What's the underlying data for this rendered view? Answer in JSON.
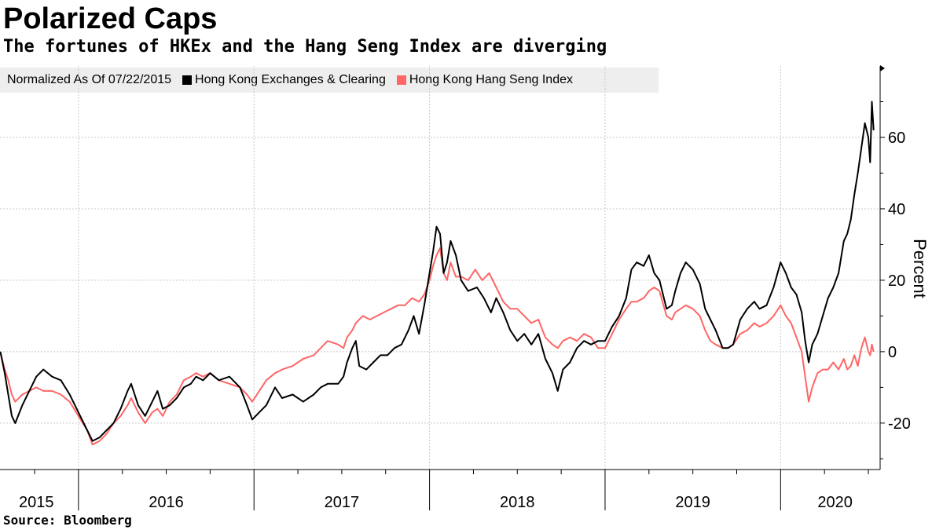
{
  "chart_data": {
    "type": "line",
    "title": "Polarized Caps",
    "subtitle": "The fortunes of HKEx and the Hang Seng Index are diverging",
    "legend_note": "Normalized As Of 07/22/2015",
    "ylabel": "Percent",
    "ylim": [
      -33,
      80
    ],
    "yticks": [
      -20,
      0,
      20,
      40,
      60
    ],
    "year_labels": [
      {
        "label": "2015",
        "x": 2015.76
      },
      {
        "label": "2016",
        "x": 2016.5
      },
      {
        "label": "2017",
        "x": 2017.5
      },
      {
        "label": "2018",
        "x": 2018.5
      },
      {
        "label": "2019",
        "x": 2019.5
      },
      {
        "label": "2020",
        "x": 2020.31
      }
    ],
    "year_boundaries": [
      2016.0,
      2017.0,
      2018.0,
      2019.0,
      2020.0
    ],
    "xlim": [
      2015.553,
      2020.567
    ],
    "series": [
      {
        "name": "Hong Kong Exchanges & Clearing",
        "color": "#000000",
        "points": [
          [
            2015.555,
            0
          ],
          [
            2015.58,
            -6
          ],
          [
            2015.6,
            -12
          ],
          [
            2015.62,
            -18
          ],
          [
            2015.64,
            -20
          ],
          [
            2015.68,
            -15
          ],
          [
            2015.72,
            -11
          ],
          [
            2015.76,
            -7
          ],
          [
            2015.8,
            -5
          ],
          [
            2015.85,
            -7
          ],
          [
            2015.9,
            -8
          ],
          [
            2015.95,
            -12
          ],
          [
            2016.0,
            -17
          ],
          [
            2016.05,
            -22
          ],
          [
            2016.08,
            -25
          ],
          [
            2016.12,
            -24
          ],
          [
            2016.16,
            -22
          ],
          [
            2016.2,
            -20
          ],
          [
            2016.24,
            -16
          ],
          [
            2016.28,
            -11
          ],
          [
            2016.3,
            -9
          ],
          [
            2016.34,
            -15
          ],
          [
            2016.38,
            -18
          ],
          [
            2016.42,
            -14
          ],
          [
            2016.45,
            -11
          ],
          [
            2016.48,
            -16
          ],
          [
            2016.52,
            -15
          ],
          [
            2016.56,
            -13
          ],
          [
            2016.6,
            -10
          ],
          [
            2016.64,
            -9
          ],
          [
            2016.67,
            -7
          ],
          [
            2016.71,
            -8
          ],
          [
            2016.75,
            -6
          ],
          [
            2016.8,
            -8
          ],
          [
            2016.86,
            -7
          ],
          [
            2016.92,
            -10
          ],
          [
            2016.96,
            -15
          ],
          [
            2016.99,
            -19
          ],
          [
            2017.03,
            -17
          ],
          [
            2017.07,
            -15
          ],
          [
            2017.12,
            -10
          ],
          [
            2017.16,
            -13
          ],
          [
            2017.22,
            -12
          ],
          [
            2017.28,
            -14
          ],
          [
            2017.34,
            -12
          ],
          [
            2017.38,
            -10
          ],
          [
            2017.42,
            -9
          ],
          [
            2017.48,
            -9
          ],
          [
            2017.51,
            -7
          ],
          [
            2017.53,
            -3
          ],
          [
            2017.56,
            1
          ],
          [
            2017.58,
            3
          ],
          [
            2017.6,
            -4
          ],
          [
            2017.64,
            -5
          ],
          [
            2017.68,
            -3
          ],
          [
            2017.72,
            -1
          ],
          [
            2017.76,
            -1
          ],
          [
            2017.8,
            1
          ],
          [
            2017.84,
            2
          ],
          [
            2017.88,
            6
          ],
          [
            2017.91,
            10
          ],
          [
            2017.94,
            5
          ],
          [
            2017.97,
            13
          ],
          [
            2018.0,
            22
          ],
          [
            2018.02,
            28
          ],
          [
            2018.04,
            35
          ],
          [
            2018.06,
            33
          ],
          [
            2018.08,
            22
          ],
          [
            2018.1,
            25
          ],
          [
            2018.12,
            31
          ],
          [
            2018.15,
            27
          ],
          [
            2018.18,
            20
          ],
          [
            2018.22,
            17
          ],
          [
            2018.27,
            18
          ],
          [
            2018.31,
            15
          ],
          [
            2018.35,
            11
          ],
          [
            2018.38,
            15
          ],
          [
            2018.42,
            11
          ],
          [
            2018.46,
            6
          ],
          [
            2018.5,
            3
          ],
          [
            2018.54,
            5
          ],
          [
            2018.58,
            2
          ],
          [
            2018.62,
            5
          ],
          [
            2018.66,
            -2
          ],
          [
            2018.7,
            -6
          ],
          [
            2018.73,
            -11
          ],
          [
            2018.76,
            -5
          ],
          [
            2018.8,
            -3
          ],
          [
            2018.84,
            1
          ],
          [
            2018.88,
            3
          ],
          [
            2018.92,
            2
          ],
          [
            2018.96,
            3
          ],
          [
            2019.0,
            3
          ],
          [
            2019.04,
            7
          ],
          [
            2019.08,
            10
          ],
          [
            2019.12,
            15
          ],
          [
            2019.15,
            23
          ],
          [
            2019.18,
            25
          ],
          [
            2019.22,
            24
          ],
          [
            2019.25,
            27
          ],
          [
            2019.28,
            22
          ],
          [
            2019.31,
            20
          ],
          [
            2019.35,
            12
          ],
          [
            2019.38,
            13
          ],
          [
            2019.4,
            17
          ],
          [
            2019.43,
            22
          ],
          [
            2019.46,
            25
          ],
          [
            2019.5,
            23
          ],
          [
            2019.54,
            19
          ],
          [
            2019.57,
            12
          ],
          [
            2019.6,
            9
          ],
          [
            2019.63,
            6
          ],
          [
            2019.67,
            1
          ],
          [
            2019.7,
            1
          ],
          [
            2019.73,
            2
          ],
          [
            2019.77,
            9
          ],
          [
            2019.81,
            12
          ],
          [
            2019.85,
            14
          ],
          [
            2019.88,
            12
          ],
          [
            2019.92,
            13
          ],
          [
            2019.96,
            18
          ],
          [
            2020.0,
            25
          ],
          [
            2020.03,
            22
          ],
          [
            2020.06,
            18
          ],
          [
            2020.09,
            16
          ],
          [
            2020.12,
            11
          ],
          [
            2020.14,
            3
          ],
          [
            2020.16,
            -3
          ],
          [
            2020.18,
            2
          ],
          [
            2020.21,
            5
          ],
          [
            2020.24,
            10
          ],
          [
            2020.27,
            15
          ],
          [
            2020.3,
            18
          ],
          [
            2020.33,
            22
          ],
          [
            2020.36,
            31
          ],
          [
            2020.38,
            33
          ],
          [
            2020.4,
            37
          ],
          [
            2020.42,
            44
          ],
          [
            2020.44,
            50
          ],
          [
            2020.46,
            57
          ],
          [
            2020.48,
            64
          ],
          [
            2020.5,
            60
          ],
          [
            2020.51,
            53
          ],
          [
            2020.52,
            70
          ],
          [
            2020.53,
            62
          ]
        ]
      },
      {
        "name": "Hong Kong Hang Seng Index",
        "color": "#ff6666",
        "points": [
          [
            2015.555,
            0
          ],
          [
            2015.58,
            -5
          ],
          [
            2015.6,
            -8
          ],
          [
            2015.62,
            -12
          ],
          [
            2015.64,
            -14
          ],
          [
            2015.68,
            -12
          ],
          [
            2015.72,
            -11
          ],
          [
            2015.76,
            -10
          ],
          [
            2015.8,
            -11
          ],
          [
            2015.85,
            -11
          ],
          [
            2015.9,
            -12
          ],
          [
            2015.95,
            -14
          ],
          [
            2016.0,
            -18
          ],
          [
            2016.05,
            -22
          ],
          [
            2016.08,
            -26
          ],
          [
            2016.12,
            -25
          ],
          [
            2016.16,
            -23
          ],
          [
            2016.2,
            -20
          ],
          [
            2016.24,
            -18
          ],
          [
            2016.28,
            -15
          ],
          [
            2016.3,
            -13
          ],
          [
            2016.34,
            -17
          ],
          [
            2016.38,
            -20
          ],
          [
            2016.42,
            -17
          ],
          [
            2016.45,
            -16
          ],
          [
            2016.48,
            -18
          ],
          [
            2016.52,
            -14
          ],
          [
            2016.56,
            -12
          ],
          [
            2016.6,
            -8
          ],
          [
            2016.64,
            -7
          ],
          [
            2016.67,
            -6
          ],
          [
            2016.71,
            -7
          ],
          [
            2016.75,
            -6
          ],
          [
            2016.8,
            -8
          ],
          [
            2016.86,
            -9
          ],
          [
            2016.92,
            -10
          ],
          [
            2016.96,
            -12
          ],
          [
            2016.99,
            -14
          ],
          [
            2017.03,
            -11
          ],
          [
            2017.07,
            -8
          ],
          [
            2017.12,
            -6
          ],
          [
            2017.16,
            -5
          ],
          [
            2017.22,
            -4
          ],
          [
            2017.28,
            -2
          ],
          [
            2017.34,
            -1
          ],
          [
            2017.38,
            1
          ],
          [
            2017.42,
            3
          ],
          [
            2017.48,
            2
          ],
          [
            2017.51,
            1
          ],
          [
            2017.53,
            4
          ],
          [
            2017.56,
            6
          ],
          [
            2017.58,
            8
          ],
          [
            2017.62,
            10
          ],
          [
            2017.66,
            9
          ],
          [
            2017.7,
            10
          ],
          [
            2017.74,
            11
          ],
          [
            2017.78,
            12
          ],
          [
            2017.82,
            13
          ],
          [
            2017.86,
            13
          ],
          [
            2017.9,
            15
          ],
          [
            2017.94,
            14
          ],
          [
            2017.97,
            16
          ],
          [
            2018.0,
            20
          ],
          [
            2018.02,
            24
          ],
          [
            2018.04,
            27
          ],
          [
            2018.06,
            29
          ],
          [
            2018.08,
            22
          ],
          [
            2018.1,
            20
          ],
          [
            2018.12,
            25
          ],
          [
            2018.15,
            21
          ],
          [
            2018.18,
            21
          ],
          [
            2018.22,
            20
          ],
          [
            2018.26,
            23
          ],
          [
            2018.3,
            20
          ],
          [
            2018.34,
            22
          ],
          [
            2018.38,
            18
          ],
          [
            2018.42,
            14
          ],
          [
            2018.46,
            12
          ],
          [
            2018.5,
            12
          ],
          [
            2018.54,
            10
          ],
          [
            2018.58,
            8
          ],
          [
            2018.62,
            9
          ],
          [
            2018.66,
            4
          ],
          [
            2018.7,
            2
          ],
          [
            2018.73,
            1
          ],
          [
            2018.76,
            3
          ],
          [
            2018.8,
            4
          ],
          [
            2018.84,
            3
          ],
          [
            2018.88,
            5
          ],
          [
            2018.92,
            4
          ],
          [
            2018.96,
            1
          ],
          [
            2019.0,
            1
          ],
          [
            2019.04,
            5
          ],
          [
            2019.08,
            9
          ],
          [
            2019.12,
            12
          ],
          [
            2019.15,
            14
          ],
          [
            2019.18,
            14
          ],
          [
            2019.22,
            15
          ],
          [
            2019.25,
            17
          ],
          [
            2019.28,
            18
          ],
          [
            2019.31,
            17
          ],
          [
            2019.35,
            10
          ],
          [
            2019.38,
            9
          ],
          [
            2019.4,
            11
          ],
          [
            2019.43,
            12
          ],
          [
            2019.46,
            13
          ],
          [
            2019.5,
            12
          ],
          [
            2019.54,
            10
          ],
          [
            2019.57,
            6
          ],
          [
            2019.6,
            3
          ],
          [
            2019.63,
            2
          ],
          [
            2019.67,
            1
          ],
          [
            2019.7,
            1
          ],
          [
            2019.73,
            2
          ],
          [
            2019.77,
            5
          ],
          [
            2019.81,
            6
          ],
          [
            2019.85,
            8
          ],
          [
            2019.88,
            7
          ],
          [
            2019.92,
            8
          ],
          [
            2019.96,
            10
          ],
          [
            2020.0,
            13
          ],
          [
            2020.03,
            10
          ],
          [
            2020.06,
            8
          ],
          [
            2020.09,
            4
          ],
          [
            2020.12,
            0
          ],
          [
            2020.14,
            -7
          ],
          [
            2020.16,
            -14
          ],
          [
            2020.18,
            -10
          ],
          [
            2020.21,
            -6
          ],
          [
            2020.24,
            -5
          ],
          [
            2020.27,
            -5
          ],
          [
            2020.3,
            -3
          ],
          [
            2020.33,
            -5
          ],
          [
            2020.36,
            -2
          ],
          [
            2020.38,
            -5
          ],
          [
            2020.4,
            -4
          ],
          [
            2020.42,
            -1
          ],
          [
            2020.44,
            -4
          ],
          [
            2020.46,
            1
          ],
          [
            2020.48,
            4
          ],
          [
            2020.5,
            0
          ],
          [
            2020.51,
            -1
          ],
          [
            2020.52,
            2
          ],
          [
            2020.53,
            0
          ]
        ]
      }
    ]
  },
  "source": "Source: Bloomberg"
}
